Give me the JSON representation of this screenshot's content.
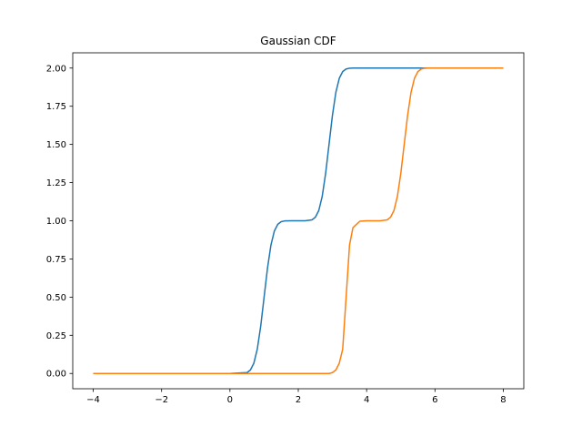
{
  "chart_data": {
    "type": "line",
    "title": "Gaussian CDF",
    "xlabel": "",
    "ylabel": "",
    "xlim": [
      -4.6,
      8.6
    ],
    "ylim": [
      -0.1,
      2.1
    ],
    "x_ticks": [
      -4,
      -2,
      0,
      2,
      4,
      6,
      8
    ],
    "x_tick_labels": [
      "−4",
      "−2",
      "0",
      "2",
      "4",
      "6",
      "8"
    ],
    "y_ticks": [
      0,
      0.25,
      0.5,
      0.75,
      1,
      1.25,
      1.5,
      1.75,
      2
    ],
    "y_tick_labels": [
      "0.00",
      "0.25",
      "0.50",
      "0.75",
      "1.00",
      "1.25",
      "1.50",
      "1.75",
      "2.00"
    ],
    "grid": false,
    "legend": "none",
    "x": [
      -4.0,
      -3.0,
      -2.0,
      -1.0,
      0.0,
      0.5,
      0.6,
      0.7,
      0.8,
      0.9,
      1.0,
      1.1,
      1.2,
      1.3,
      1.4,
      1.5,
      1.6,
      1.8,
      2.0,
      2.2,
      2.4,
      2.5,
      2.6,
      2.7,
      2.8,
      2.9,
      3.0,
      3.1,
      3.2,
      3.3,
      3.4,
      3.5,
      3.6,
      3.8,
      4.0,
      4.2,
      4.4,
      4.6,
      4.7,
      4.8,
      4.9,
      5.0,
      5.1,
      5.2,
      5.3,
      5.4,
      5.5,
      5.6,
      5.7,
      5.8,
      5.9,
      6.0,
      6.5,
      7.0,
      7.5,
      8.0
    ],
    "series": [
      {
        "color": "#1f77b4",
        "values": [
          0,
          0,
          0,
          0,
          0,
          0.006,
          0.023,
          0.067,
          0.159,
          0.309,
          0.5,
          0.691,
          0.841,
          0.933,
          0.977,
          0.994,
          0.999,
          1.0,
          1.0,
          1.0,
          1.006,
          1.023,
          1.067,
          1.159,
          1.309,
          1.5,
          1.691,
          1.841,
          1.933,
          1.977,
          1.994,
          1.999,
          2.0,
          2.0,
          2.0,
          2.0,
          2.0,
          2.0,
          2.0,
          2.0,
          2.0,
          2.0,
          2.0,
          2.0,
          2.0,
          2.0,
          2.0,
          2.0,
          2.0,
          2.0,
          2.0,
          2.0,
          2.0,
          2.0,
          2.0,
          2.0
        ]
      },
      {
        "color": "#ff7f0e",
        "values": [
          0,
          0,
          0,
          0,
          0,
          0,
          0,
          0,
          0,
          0,
          0,
          0,
          0,
          0,
          0,
          0,
          0,
          0,
          0,
          0,
          0,
          0,
          0,
          0,
          0,
          0.0,
          0.006,
          0.023,
          0.067,
          0.159,
          0.5,
          0.841,
          0.955,
          0.997,
          1.0,
          1.0,
          1.0,
          1.006,
          1.023,
          1.067,
          1.159,
          1.309,
          1.5,
          1.691,
          1.841,
          1.933,
          1.977,
          1.994,
          1.999,
          2.0,
          2.0,
          2.0,
          2.0,
          2.0,
          2.0,
          2.0
        ]
      }
    ]
  }
}
